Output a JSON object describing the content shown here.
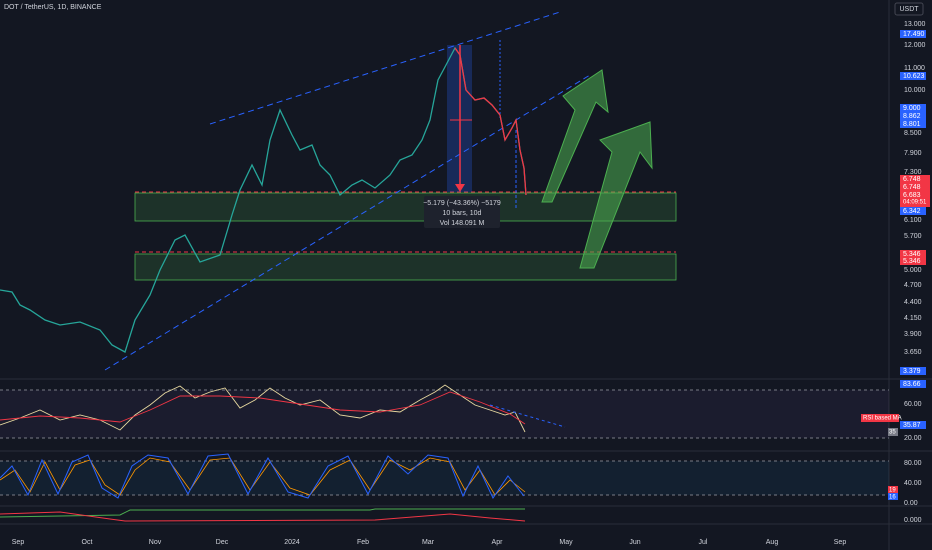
{
  "header": {
    "title": "DOT / TetherUS, 1D, BINANCE",
    "currency": "USDT"
  },
  "price_axis": {
    "labels": [
      "13.000",
      "12.000",
      "11.000",
      "10.000",
      "8.500",
      "7.900",
      "7.300",
      "6.100",
      "5.700",
      "5.000",
      "4.700",
      "4.400",
      "4.150",
      "3.900",
      "3.650"
    ],
    "blue_tags": [
      "17.490",
      "10.623",
      "9.000",
      "8.862",
      "8.801",
      "6.342",
      "3.379"
    ],
    "red_tags": [
      "6.748",
      "6.748",
      "6.683",
      "04:09:51",
      "5.346",
      "5.346"
    ]
  },
  "measure": {
    "change": "−5.179 (−43.36%) −5179",
    "bars": "10 bars, 10d",
    "volume": "Vol 148.091 M"
  },
  "rsi_panel": {
    "labels": [
      "60.00",
      "20.00"
    ],
    "tags": [
      "83.66",
      "35.87"
    ],
    "ma_label": "RSI based MA",
    "length": "35"
  },
  "stoch_panel": {
    "labels": [
      "80.00",
      "40.00",
      "0.00"
    ],
    "tags": [
      "19",
      "16"
    ]
  },
  "third_panel": {
    "labels": [
      "0.000"
    ]
  },
  "time_axis": [
    "Sep",
    "Oct",
    "Nov",
    "Dec",
    "2024",
    "Feb",
    "Mar",
    "Apr",
    "May",
    "Jun",
    "Jul",
    "Aug",
    "Sep"
  ]
}
